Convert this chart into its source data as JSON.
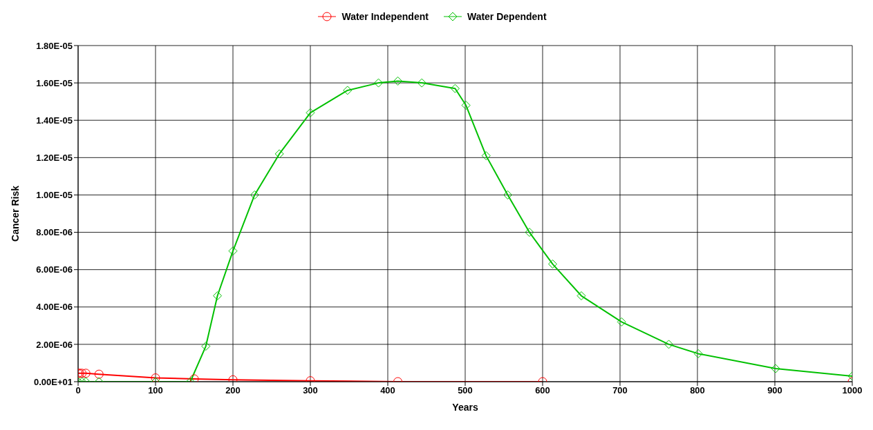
{
  "chart_data": {
    "type": "line",
    "xlabel": "Years",
    "ylabel": "Cancer Risk",
    "xlim": [
      0,
      1000
    ],
    "ylim": [
      0,
      1.8e-05
    ],
    "xticks": [
      0,
      100,
      200,
      300,
      400,
      500,
      600,
      700,
      800,
      900,
      1000
    ],
    "yticks": [
      {
        "value": 0,
        "label": "0.00E+01"
      },
      {
        "value": 2e-06,
        "label": "2.00E-06"
      },
      {
        "value": 4e-06,
        "label": "4.00E-06"
      },
      {
        "value": 6e-06,
        "label": "6.00E-06"
      },
      {
        "value": 8e-06,
        "label": "8.00E-06"
      },
      {
        "value": 1e-05,
        "label": "1.00E-05"
      },
      {
        "value": 1.2e-05,
        "label": "1.20E-05"
      },
      {
        "value": 1.4e-05,
        "label": "1.40E-05"
      },
      {
        "value": 1.6e-05,
        "label": "1.60E-05"
      },
      {
        "value": 1.8e-05,
        "label": "1.80E-05"
      }
    ],
    "grid": true,
    "legend": "top",
    "series": [
      {
        "name": "Water Independent",
        "color": "#ff0000",
        "marker": "circle",
        "x": [
          0,
          2,
          5,
          10,
          27,
          100,
          150,
          200,
          300,
          413,
          600,
          800,
          1000
        ],
        "values": [
          4.5e-07,
          4.5e-07,
          4.5e-07,
          4.5e-07,
          4e-07,
          2e-07,
          1.5e-07,
          1e-07,
          5e-08,
          0,
          0,
          null,
          0
        ]
      },
      {
        "name": "Water Dependent",
        "color": "#00c000",
        "marker": "diamond",
        "x": [
          0,
          5,
          10,
          27,
          100,
          145,
          165,
          180,
          200,
          228,
          260,
          300,
          348,
          388,
          413,
          444,
          487,
          501,
          527,
          555,
          583,
          613,
          650,
          702,
          763,
          801,
          901,
          1000
        ],
        "values": [
          0,
          0,
          0,
          0,
          0,
          0,
          1.9e-06,
          4.6e-06,
          7e-06,
          1e-05,
          1.22e-05,
          1.44e-05,
          1.56e-05,
          1.6e-05,
          1.61e-05,
          1.6e-05,
          1.57e-05,
          1.48e-05,
          1.21e-05,
          1e-05,
          8e-06,
          6.3e-06,
          4.6e-06,
          3.2e-06,
          2e-06,
          1.5e-06,
          7e-07,
          3e-07
        ]
      }
    ]
  }
}
